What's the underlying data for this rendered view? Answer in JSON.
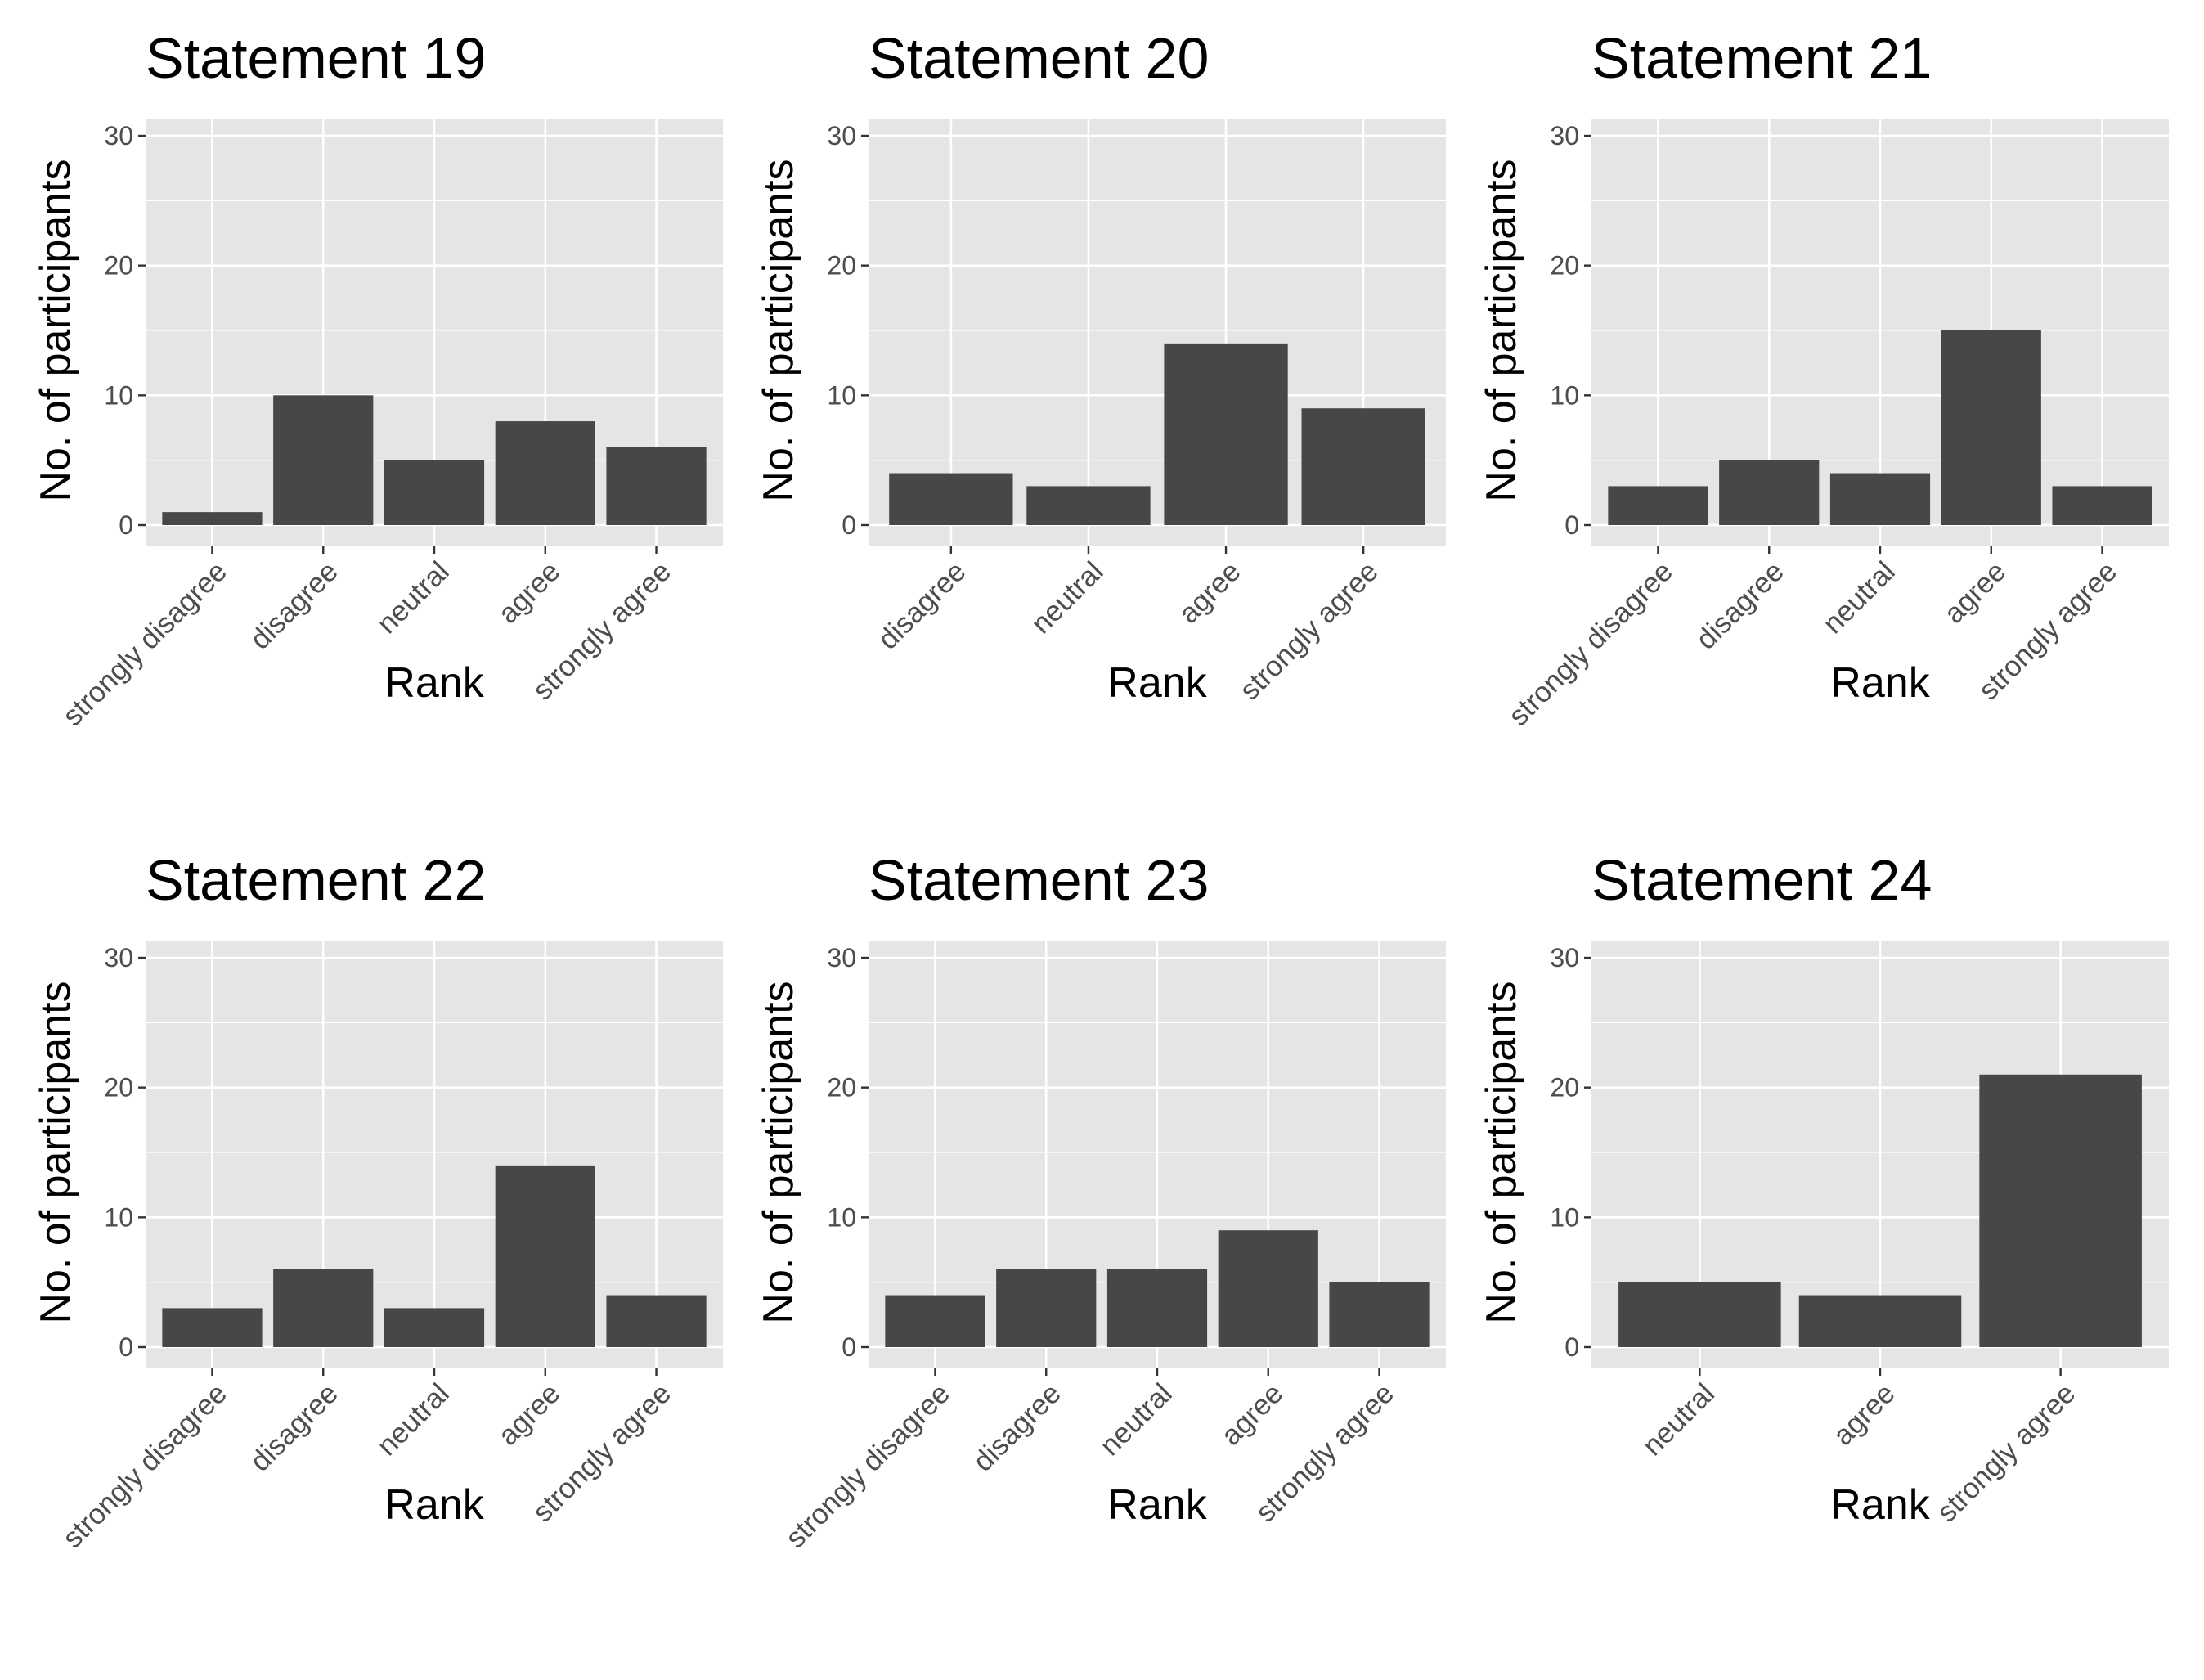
{
  "colors": {
    "panel_background": "#e5e5e5",
    "grid": "#ffffff",
    "bar": "#474747",
    "tick_text": "#4d4d4d",
    "tick_mark": "#333333"
  },
  "chart_data": [
    {
      "type": "bar",
      "title": "Statement 19",
      "xlabel": "Rank",
      "ylabel": "No. of participants",
      "categories": [
        "strongly disagree",
        "disagree",
        "neutral",
        "agree",
        "strongly agree"
      ],
      "values": [
        1,
        10,
        5,
        8,
        6
      ],
      "ylim": [
        0,
        30
      ],
      "yticks": [
        "0",
        "10",
        "20",
        "30"
      ],
      "grid": true
    },
    {
      "type": "bar",
      "title": "Statement 20",
      "xlabel": "Rank",
      "ylabel": "No. of participants",
      "categories": [
        "disagree",
        "neutral",
        "agree",
        "strongly agree"
      ],
      "values": [
        4,
        3,
        14,
        9
      ],
      "ylim": [
        0,
        30
      ],
      "yticks": [
        "0",
        "10",
        "20",
        "30"
      ],
      "grid": true
    },
    {
      "type": "bar",
      "title": "Statement 21",
      "xlabel": "Rank",
      "ylabel": "No. of participants",
      "categories": [
        "strongly disagree",
        "disagree",
        "neutral",
        "agree",
        "strongly agree"
      ],
      "values": [
        3,
        5,
        4,
        15,
        3
      ],
      "ylim": [
        0,
        30
      ],
      "yticks": [
        "0",
        "10",
        "20",
        "30"
      ],
      "grid": true
    },
    {
      "type": "bar",
      "title": "Statement 22",
      "xlabel": "Rank",
      "ylabel": "No. of participants",
      "categories": [
        "strongly disagree",
        "disagree",
        "neutral",
        "agree",
        "strongly agree"
      ],
      "values": [
        3,
        6,
        3,
        14,
        4
      ],
      "ylim": [
        0,
        30
      ],
      "yticks": [
        "0",
        "10",
        "20",
        "30"
      ],
      "grid": true
    },
    {
      "type": "bar",
      "title": "Statement 23",
      "xlabel": "Rank",
      "ylabel": "No. of participants",
      "categories": [
        "strongly disagree",
        "disagree",
        "neutral",
        "agree",
        "strongly agree"
      ],
      "values": [
        4,
        6,
        6,
        9,
        5
      ],
      "ylim": [
        0,
        30
      ],
      "yticks": [
        "0",
        "10",
        "20",
        "30"
      ],
      "grid": true
    },
    {
      "type": "bar",
      "title": "Statement 24",
      "xlabel": "Rank",
      "ylabel": "No. of participants",
      "categories": [
        "neutral",
        "agree",
        "strongly agree"
      ],
      "values": [
        5,
        4,
        21
      ],
      "ylim": [
        0,
        30
      ],
      "yticks": [
        "0",
        "10",
        "20",
        "30"
      ],
      "grid": true
    }
  ]
}
